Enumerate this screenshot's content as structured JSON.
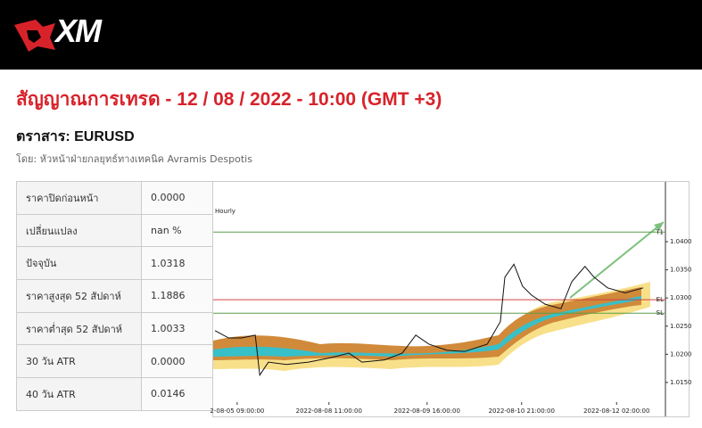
{
  "header": {
    "logo": "XM"
  },
  "title": "สัญญาณการเทรด - 12 / 08 / 2022 - 10:00 (GMT +3)",
  "instrument": "ตราสาร: EURUSD",
  "author": "โดย: หัวหน้าฝ่ายกลยุทธ์ทางเทคนิค Avramis Despotis",
  "table": {
    "rows": [
      [
        "ราคาปิดก่อนหน้า",
        "0.0000"
      ],
      [
        "เปลี่ยนแปลง",
        "nan %"
      ],
      [
        "ปัจจุบัน",
        "1.0318"
      ],
      [
        "ราคาสูงสุด 52 สัปดาห์",
        "1.1886"
      ],
      [
        "ราคาต่ำสุด 52 สัปดาห์",
        "1.0033"
      ],
      [
        "30 วัน ATR",
        "0.0000"
      ],
      [
        "40 วัน ATR",
        "0.0146"
      ]
    ]
  },
  "chart_data": {
    "type": "line",
    "title": "Hourly",
    "x": [
      0.4,
      3.4,
      6.3,
      9.3,
      10.3,
      12.2,
      16.2,
      21.1,
      26.0,
      30.0,
      32.9,
      37.9,
      41.8,
      44.8,
      47.7,
      51.7,
      55.6,
      60.6,
      63.5,
      64.5,
      66.5,
      68.4,
      70.4,
      73.4,
      76.9,
      79.3,
      82.2,
      84.2,
      87.2,
      91.1,
      95.1
    ],
    "series": [
      {
        "color": "#111111",
        "values": [
          1.0242,
          1.0229,
          1.0229,
          1.0234,
          1.0163,
          1.0186,
          1.0182,
          1.0186,
          1.0194,
          1.0202,
          1.0186,
          1.019,
          1.0202,
          1.0234,
          1.0218,
          1.0207,
          1.0205,
          1.0218,
          1.0258,
          1.0337,
          1.036,
          1.0321,
          1.0305,
          1.0289,
          1.0281,
          1.0329,
          1.0356,
          1.0337,
          1.0318,
          1.0309,
          1.0318
        ]
      }
    ],
    "levels": [
      {
        "name": "T1",
        "value": 1.0417,
        "color": "#5a9e4a"
      },
      {
        "name": "EL",
        "value": 1.0297,
        "color": "#d04040"
      },
      {
        "name": "SL",
        "value": 1.0273,
        "color": "#5a9e4a"
      }
    ],
    "xlim": [
      0,
      100
    ],
    "ylim": [
      1.0115,
      1.0503
    ],
    "xticks": [
      {
        "value": 5.3,
        "label": "2-08-05 09:00:00"
      },
      {
        "value": 25.6,
        "label": "2022-08-08 11:00:00"
      },
      {
        "value": 47.3,
        "label": "2022-08-09 16:00:00"
      },
      {
        "value": 68.2,
        "label": "2022-08-10 21:00:00"
      },
      {
        "value": 89.2,
        "label": "2022-08-12 02:00:00"
      }
    ],
    "yticks": [
      {
        "value": 1.04,
        "label": "1.0400"
      },
      {
        "value": 1.035,
        "label": "1.0350"
      },
      {
        "value": 1.03,
        "label": "1.0300"
      },
      {
        "value": 1.025,
        "label": "1.0250"
      },
      {
        "value": 1.02,
        "label": "1.0200"
      },
      {
        "value": 1.015,
        "label": "1.0150"
      }
    ]
  }
}
